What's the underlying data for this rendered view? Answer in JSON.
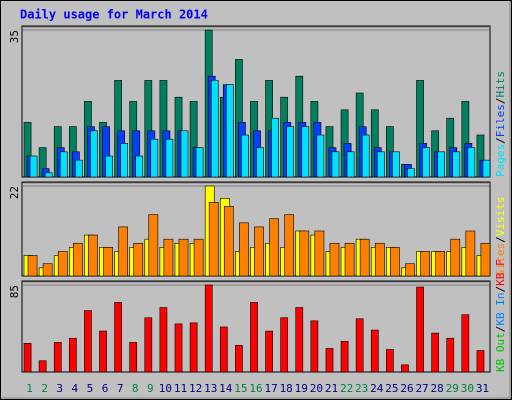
{
  "title": "Daily usage for March 2014",
  "chart_data": [
    {
      "type": "bar",
      "legend_separator": "/",
      "ylim": [
        0,
        35
      ],
      "yticks": [
        35
      ],
      "series": [
        {
          "name": "Hits",
          "color": "#008060",
          "values": [
            13,
            7,
            12,
            12,
            18,
            13,
            23,
            18,
            23,
            23,
            19,
            18,
            35,
            19,
            28,
            18,
            23,
            19,
            24,
            18,
            12,
            16,
            20,
            16,
            12,
            3,
            23,
            11,
            14,
            18,
            10
          ]
        },
        {
          "name": "Files",
          "color": "#0040ff",
          "values": [
            5,
            2,
            7,
            6,
            12,
            12,
            11,
            11,
            11,
            11,
            11,
            7,
            24,
            22,
            13,
            11,
            11,
            13,
            13,
            13,
            7,
            8,
            12,
            7,
            6,
            3,
            8,
            6,
            7,
            8,
            4
          ]
        },
        {
          "name": "Pages",
          "color": "#00e0ff",
          "values": [
            5,
            1,
            6,
            4,
            11,
            5,
            8,
            5,
            9,
            9,
            11,
            7,
            23,
            22,
            10,
            7,
            14,
            12,
            12,
            10,
            6,
            6,
            10,
            6,
            6,
            2,
            7,
            6,
            6,
            7,
            4
          ]
        }
      ]
    },
    {
      "type": "bar",
      "legend_separator": "/",
      "ylim": [
        0,
        22
      ],
      "yticks": [
        22
      ],
      "series": [
        {
          "name": "Visits",
          "color": "#ffff00",
          "values": [
            5,
            2,
            5,
            7,
            10,
            7,
            6,
            7,
            9,
            7,
            8,
            8,
            22,
            19,
            6,
            7,
            8,
            7,
            11,
            10,
            6,
            7,
            9,
            7,
            7,
            2,
            6,
            6,
            6,
            7,
            5
          ]
        },
        {
          "name": "Sites",
          "color": "#ff8000",
          "values": [
            5,
            3,
            6,
            8,
            10,
            7,
            12,
            8,
            15,
            9,
            9,
            9,
            18,
            17,
            13,
            12,
            14,
            15,
            11,
            11,
            8,
            8,
            9,
            8,
            7,
            3,
            6,
            6,
            9,
            11,
            8
          ]
        }
      ]
    },
    {
      "type": "bar",
      "legend_separator": "/",
      "ylim": [
        0,
        85
      ],
      "yticks": [
        85
      ],
      "categories": [
        "1",
        "2",
        "3",
        "4",
        "5",
        "6",
        "7",
        "8",
        "9",
        "10",
        "11",
        "12",
        "13",
        "14",
        "15",
        "16",
        "17",
        "18",
        "19",
        "20",
        "21",
        "22",
        "23",
        "24",
        "25",
        "26",
        "27",
        "28",
        "29",
        "30",
        "31"
      ],
      "category_colors": [
        "#008040",
        "#008040",
        "#000080",
        "#000080",
        "#000080",
        "#000080",
        "#000080",
        "#008040",
        "#008040",
        "#000080",
        "#000080",
        "#000080",
        "#000080",
        "#000080",
        "#008040",
        "#008040",
        "#000080",
        "#000080",
        "#000080",
        "#000080",
        "#000080",
        "#008040",
        "#008040",
        "#000080",
        "#000080",
        "#000080",
        "#000080",
        "#000080",
        "#008040",
        "#008040",
        "#000080"
      ],
      "series": [
        {
          "name": "KB F",
          "color": "#ff0000",
          "values": [
            28,
            11,
            29,
            33,
            60,
            40,
            68,
            29,
            53,
            63,
            47,
            48,
            85,
            44,
            26,
            68,
            40,
            53,
            63,
            50,
            23,
            30,
            52,
            41,
            22,
            7,
            83,
            38,
            33,
            56,
            21
          ]
        },
        {
          "name": "KB In",
          "color": "#0080ff",
          "values": [
            0,
            0,
            0,
            0,
            0,
            0,
            0,
            0,
            0,
            0,
            0,
            0,
            0,
            0,
            0,
            0,
            0,
            0,
            0,
            0,
            0,
            0,
            0,
            0,
            0,
            0,
            0,
            0,
            0,
            0,
            0
          ]
        },
        {
          "name": "KB Out",
          "color": "#00c000",
          "values": [
            0,
            0,
            0,
            0,
            0,
            0,
            0,
            0,
            0,
            0,
            0,
            0,
            0,
            0,
            0,
            0,
            0,
            0,
            0,
            0,
            0,
            0,
            0,
            0,
            0,
            0,
            0,
            0,
            0,
            0,
            0
          ]
        }
      ]
    }
  ]
}
